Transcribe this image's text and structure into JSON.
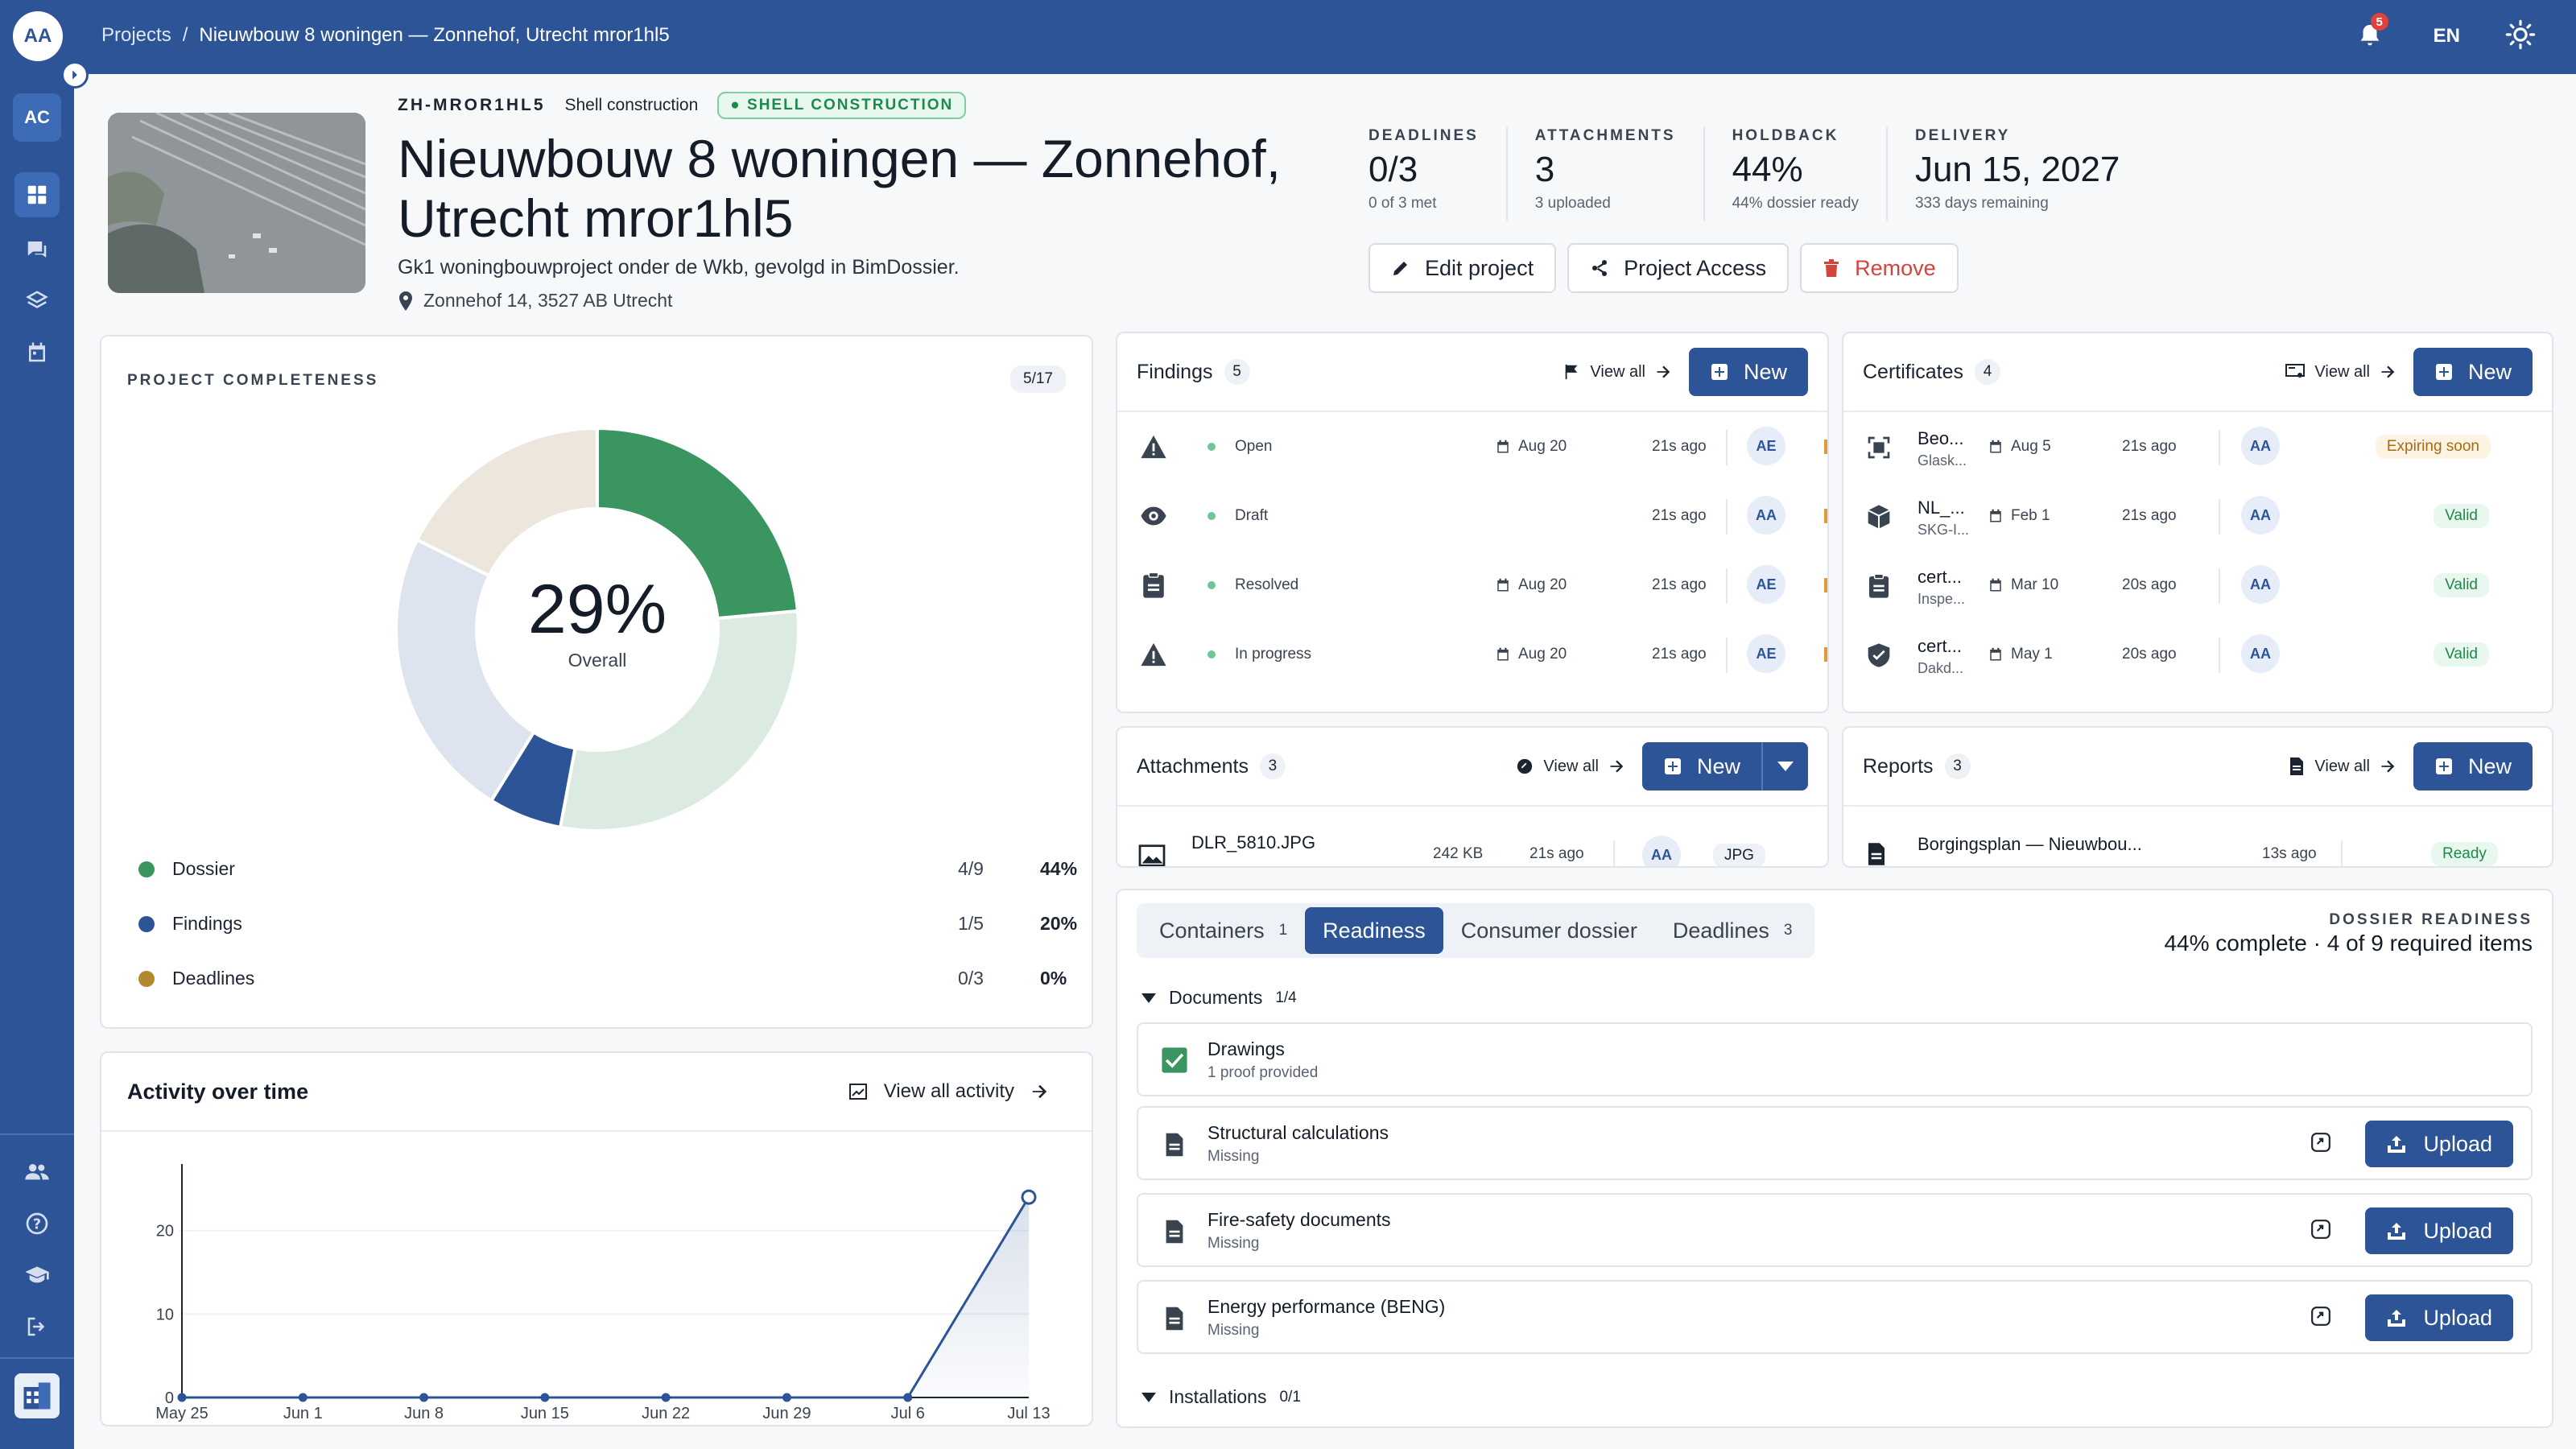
{
  "user": {
    "initials": "AA"
  },
  "breadcrumb": {
    "root": "Projects",
    "separator": "/",
    "current": "Nieuwbouw 8 woningen — Zonnehof, Utrecht mror1hl5"
  },
  "topbar": {
    "notifications": "5",
    "language": "EN"
  },
  "sidebar": {
    "org": "AC"
  },
  "project": {
    "code": "ZH-MROR1HL5",
    "phase": "Shell construction",
    "phase_badge": "● SHELL CONSTRUCTION",
    "title": "Nieuwbouw 8 woningen — Zonnehof, Utrecht mror1hl5",
    "description": "Gk1 woningbouwproject onder de Wkb, gevolgd in BimDossier.",
    "address": "Zonnehof 14, 3527 AB Utrecht"
  },
  "stats": [
    {
      "label": "DEADLINES",
      "value": "0/3",
      "sub": "0 of 3 met"
    },
    {
      "label": "ATTACHMENTS",
      "value": "3",
      "sub": "3 uploaded"
    },
    {
      "label": "HOLDBACK",
      "value": "44%",
      "sub": "44% dossier ready"
    },
    {
      "label": "DELIVERY",
      "value": "Jun 15, 2027",
      "sub": "333 days remaining"
    }
  ],
  "actions": {
    "edit": "Edit project",
    "access": "Project Access",
    "remove": "Remove"
  },
  "completeness": {
    "label": "PROJECT COMPLETENESS",
    "count": "5/17",
    "percent": "29%",
    "caption": "Overall",
    "segments": [
      {
        "name": "Dossier",
        "value": 4,
        "total": 9,
        "color": "#3a9561",
        "rest_color": "#dcebe2"
      },
      {
        "name": "Findings",
        "value": 1,
        "total": 5,
        "color": "#2c5496",
        "rest_color": "#dde3ef"
      },
      {
        "name": "Deadlines",
        "value": 0,
        "total": 3,
        "color": "#b0892e",
        "rest_color": "#ede6dc"
      }
    ],
    "legend": [
      {
        "name": "Dossier",
        "frac": "4/9",
        "pct": "44%",
        "color": "#3a9561"
      },
      {
        "name": "Findings",
        "frac": "1/5",
        "pct": "20%",
        "color": "#2c5496"
      },
      {
        "name": "Deadlines",
        "frac": "0/3",
        "pct": "0%",
        "color": "#b0892e"
      }
    ]
  },
  "findings": {
    "title": "Findings",
    "count": "5",
    "view_all": "View all",
    "new": "New",
    "rows": [
      {
        "icon": "warning-icon",
        "status": "Open",
        "date": "Aug 20",
        "ago": "21s ago",
        "avatar": "AE"
      },
      {
        "icon": "eye-icon",
        "status": "Draft",
        "date": "",
        "ago": "21s ago",
        "avatar": "AA"
      },
      {
        "icon": "clipboard-icon",
        "status": "Resolved",
        "date": "Aug 20",
        "ago": "21s ago",
        "avatar": "AE"
      },
      {
        "icon": "warning-icon",
        "status": "In progress",
        "date": "Aug 20",
        "ago": "21s ago",
        "avatar": "AE"
      }
    ]
  },
  "certificates": {
    "title": "Certificates",
    "count": "4",
    "view_all": "View all",
    "new": "New",
    "rows": [
      {
        "icon": "scan-icon",
        "name": "Beo...",
        "sub": "Glask...",
        "date": "Aug 5",
        "ago": "21s ago",
        "avatar": "AA",
        "badge": "Expiring soon",
        "badge_color": "#a86a12",
        "badge_bg": "#fdf3e2"
      },
      {
        "icon": "box-icon",
        "name": "NL_...",
        "sub": "SKG-I...",
        "date": "Feb 1",
        "ago": "21s ago",
        "avatar": "AA",
        "badge": "Valid",
        "badge_color": "#1e8a4a",
        "badge_bg": "#e8f8ee"
      },
      {
        "icon": "clipboard-icon",
        "name": "cert...",
        "sub": "Inspe...",
        "date": "Mar 10",
        "ago": "20s ago",
        "avatar": "AA",
        "badge": "Valid",
        "badge_color": "#1e8a4a",
        "badge_bg": "#e8f8ee"
      },
      {
        "icon": "shield-icon",
        "name": "cert...",
        "sub": "Dakd...",
        "date": "May 1",
        "ago": "20s ago",
        "avatar": "AA",
        "badge": "Valid",
        "badge_color": "#1e8a4a",
        "badge_bg": "#e8f8ee"
      }
    ]
  },
  "attachments": {
    "title": "Attachments",
    "count": "3",
    "view_all": "View all",
    "new": "New",
    "rows": [
      {
        "name": "DLR_5810.JPG",
        "size": "242 KB",
        "ago": "21s ago",
        "avatar": "AA",
        "type": "JPG"
      }
    ]
  },
  "reports": {
    "title": "Reports",
    "count": "3",
    "view_all": "View all",
    "new": "New",
    "rows": [
      {
        "name": "Borgingsplan — Nieuwbou...",
        "ago": "13s ago",
        "badge": "Ready"
      }
    ]
  },
  "tabs": [
    {
      "label": "Containers",
      "count": "1",
      "active": false
    },
    {
      "label": "Readiness",
      "count": "",
      "active": true
    },
    {
      "label": "Consumer dossier",
      "count": "",
      "active": false
    },
    {
      "label": "Deadlines",
      "count": "3",
      "active": false
    }
  ],
  "readiness": {
    "label": "DOSSIER READINESS",
    "summary": "44% complete · 4 of 9 required items",
    "sections": [
      {
        "name": "Documents",
        "count": "1/4"
      },
      {
        "name": "Installations",
        "count": "0/1"
      }
    ],
    "items": [
      {
        "name": "Drawings",
        "sub": "1 proof provided",
        "done": true
      },
      {
        "name": "Structural calculations",
        "sub": "Missing",
        "done": false
      },
      {
        "name": "Fire-safety documents",
        "sub": "Missing",
        "done": false
      },
      {
        "name": "Energy performance (BENG)",
        "sub": "Missing",
        "done": false
      }
    ],
    "upload": "Upload"
  },
  "activity": {
    "title": "Activity over time",
    "view_all": "View all activity",
    "chart_data": {
      "type": "line",
      "categories": [
        "May 25",
        "Jun 1",
        "Jun 8",
        "Jun 15",
        "Jun 22",
        "Jun 29",
        "Jul 6",
        "Jul 13"
      ],
      "values": [
        0,
        0,
        0,
        0,
        0,
        0,
        0,
        24
      ],
      "yticks": [
        0,
        10,
        20
      ],
      "ylim": [
        0,
        27
      ],
      "color": "#2c5496"
    }
  }
}
